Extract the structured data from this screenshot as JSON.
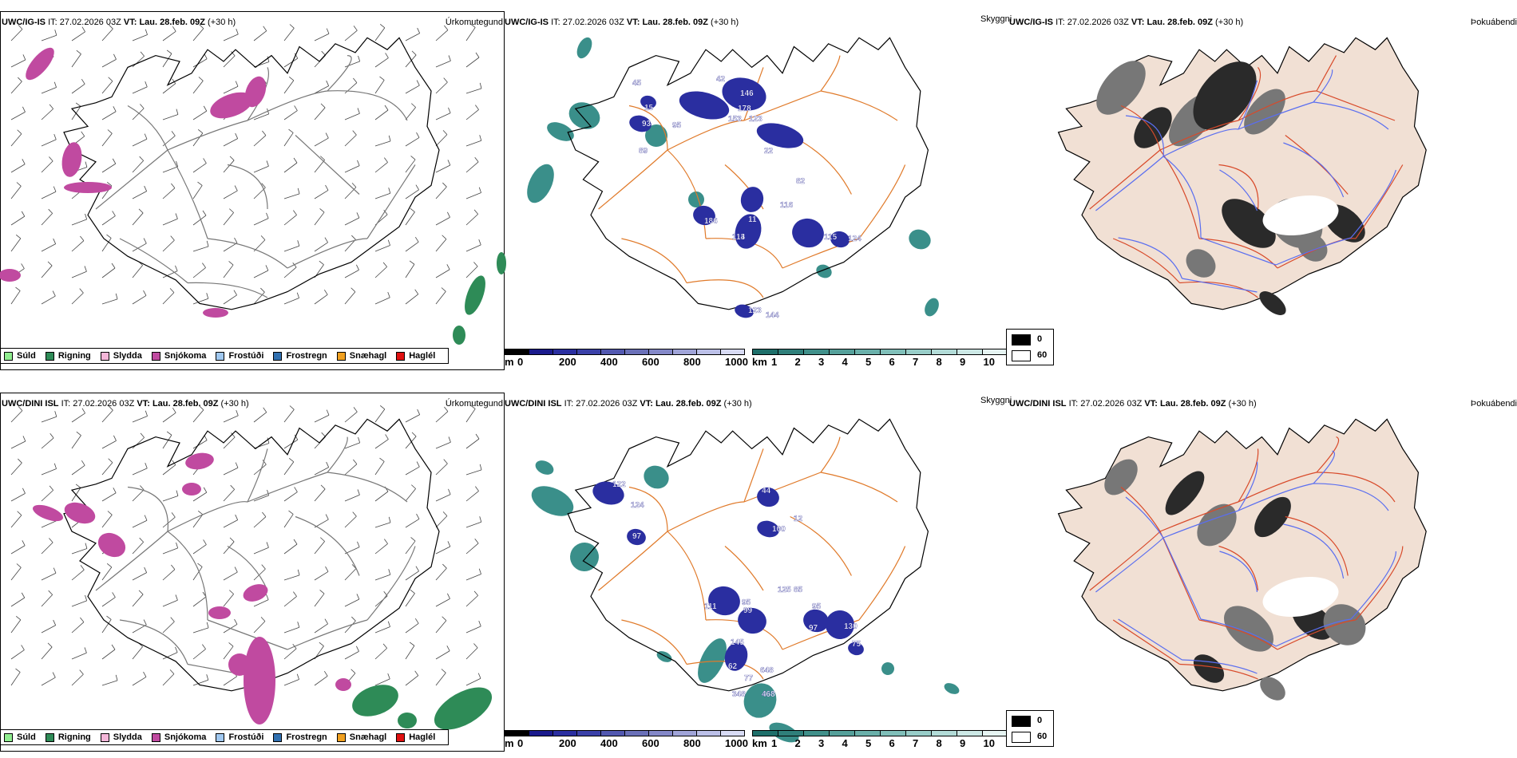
{
  "rows": [
    {
      "precip": {
        "model": "UWC/IG-IS",
        "it_label": "IT:",
        "it": "27.02.2026 03Z",
        "vt_label": "VT:",
        "vt": "Lau. 28.feb. 09Z",
        "lead": "(+30 h)",
        "title": "Úrkomutegund"
      },
      "cloud": {
        "model": "UWC/IG-IS",
        "it_label": "IT:",
        "it": "27.02.2026 03Z",
        "vt_label": "VT:",
        "vt": "Lau. 28.feb. 09Z",
        "lead": "(+30 h)",
        "title": "Skyggni",
        "labels": [
          "45",
          "93",
          "89",
          "95",
          "15",
          "42",
          "178",
          "146",
          "153",
          "123",
          "22",
          "82",
          "116",
          "11",
          "13",
          "114",
          "115",
          "124",
          "186",
          "123",
          "144"
        ]
      },
      "fog": {
        "model": "UWC/IG-IS",
        "it_label": "IT:",
        "it": "27.02.2026 03Z",
        "vt_label": "VT:",
        "vt": "Lau. 28.feb. 09Z",
        "lead": "(+30 h)",
        "title": "Þokuábendi"
      }
    },
    {
      "precip": {
        "model": "UWC/DINI ISL",
        "it_label": "IT:",
        "it": "27.02.2026 03Z",
        "vt_label": "VT:",
        "vt": "Lau. 28.feb. 09Z",
        "lead": "(+30 h)",
        "title": "Úrkomutegund"
      },
      "cloud": {
        "model": "UWC/DINI ISL",
        "it_label": "IT:",
        "it": "27.02.2026 03Z",
        "vt_label": "VT:",
        "vt": "Lau. 28.feb. 09Z",
        "lead": "(+30 h)",
        "title": "Skyggni",
        "labels": [
          "122",
          "124",
          "97",
          "44",
          "100",
          "12",
          "125",
          "95",
          "85",
          "111",
          "99",
          "95",
          "97",
          "130",
          "145",
          "75",
          "62",
          "648",
          "77",
          "348",
          "468"
        ]
      },
      "fog": {
        "model": "UWC/DINI ISL",
        "it_label": "IT:",
        "it": "27.02.2026 03Z",
        "vt_label": "VT:",
        "vt": "Lau. 28.feb. 09Z",
        "lead": "(+30 h)",
        "title": "Þokuábendi"
      }
    }
  ],
  "precip_legend": [
    {
      "label": "Súld",
      "color": "#90ee90"
    },
    {
      "label": "Rigning",
      "color": "#2e8b57"
    },
    {
      "label": "Slydda",
      "color": "#f4b6d8"
    },
    {
      "label": "Snjókoma",
      "color": "#c04aa0"
    },
    {
      "label": "Frostúði",
      "color": "#a0c8f0"
    },
    {
      "label": "Frostregn",
      "color": "#3070b0"
    },
    {
      "label": "Snæhagl",
      "color": "#f0a020"
    },
    {
      "label": "Haglél",
      "color": "#e01010"
    }
  ],
  "cloud_base_bar": {
    "unit": "m",
    "ticks": [
      "0",
      "200",
      "400",
      "600",
      "800",
      "1000"
    ],
    "colors": [
      "#000000",
      "#1a1a8c",
      "#2a2ea0",
      "#3a40a8",
      "#5258b0",
      "#6a70b8",
      "#8488c8",
      "#a0a4d8",
      "#bcc0e8",
      "#d8dbf4"
    ]
  },
  "visibility_bar": {
    "unit": "km",
    "ticks": [
      "1",
      "2",
      "3",
      "4",
      "5",
      "6",
      "7",
      "8",
      "9",
      "10"
    ],
    "colors": [
      "#1e6f6a",
      "#2f7f7a",
      "#40908a",
      "#55a09a",
      "#6ab0aa",
      "#80bfb9",
      "#98cdc8",
      "#b2dbd7",
      "#cce8e5",
      "#e6f4f2"
    ]
  },
  "fog_key": [
    {
      "label": "0",
      "color": "#000000"
    },
    {
      "label": "60",
      "color": "#ffffff"
    }
  ],
  "colors": {
    "coast": "#000000",
    "roads": "#e07a2a",
    "rivers": "#5a6ef0",
    "land_fog": "#f1e0d4",
    "snow": "#c04aa0",
    "rain": "#2e8b57",
    "cloud_blue": "#2a2ea0",
    "vis_teal": "#3a8f8a"
  }
}
